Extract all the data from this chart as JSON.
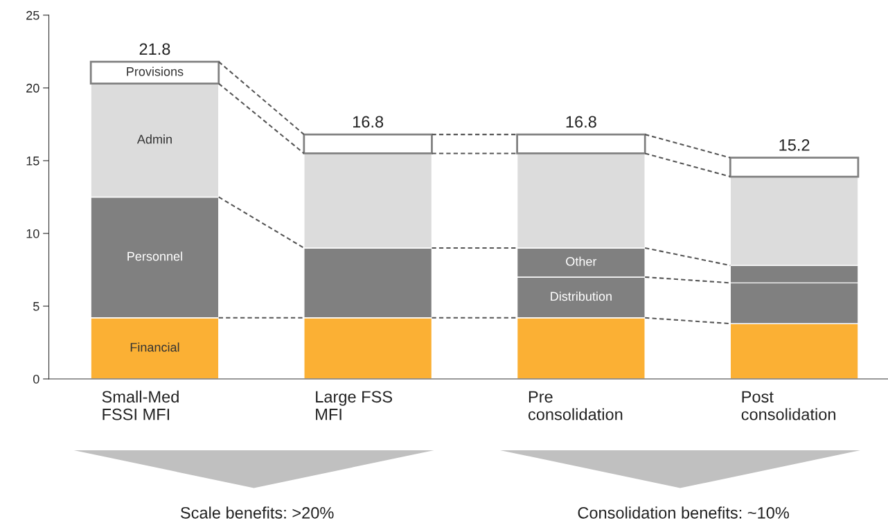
{
  "chart_data": {
    "type": "bar",
    "stacked": true,
    "categories": [
      "Small-Med\nFSSI MFI",
      "Large FSS\nMFI",
      "Pre\nconsolidation",
      "Post\nconsolidation"
    ],
    "series": [
      {
        "name": "Financial",
        "color": "#fbb034",
        "values": [
          4.2,
          4.2,
          4.2,
          3.8
        ]
      },
      {
        "name": "Distribution",
        "color": "#808080",
        "values": [
          null,
          null,
          2.8,
          2.8
        ]
      },
      {
        "name": "Other",
        "color": "#808080",
        "values": [
          null,
          null,
          2.0,
          1.2
        ]
      },
      {
        "name": "Personnel",
        "color": "#808080",
        "values": [
          8.3,
          4.8,
          null,
          null
        ]
      },
      {
        "name": "Admin",
        "color": "#dcdcdc",
        "values": [
          7.8,
          6.5,
          6.5,
          6.1
        ]
      },
      {
        "name": "Provisions",
        "color": "#ffffff",
        "values": [
          1.5,
          1.3,
          1.3,
          1.3
        ]
      }
    ],
    "totals": [
      "21.8",
      "16.8",
      "16.8",
      "15.2"
    ],
    "ylim": [
      0,
      25
    ],
    "yticks": [
      0,
      5,
      10,
      15,
      20,
      25
    ],
    "grid": false,
    "legend": false,
    "annotations": [
      "Scale benefits: >20%",
      "Consolidation benefits: ~10%"
    ]
  }
}
